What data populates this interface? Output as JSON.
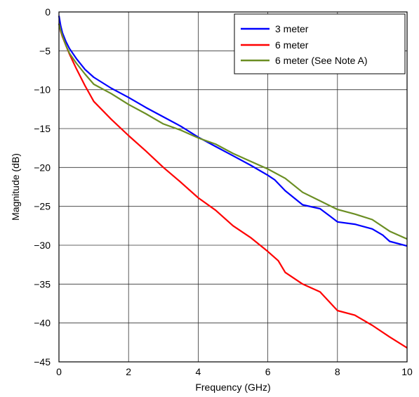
{
  "chart_data": {
    "type": "line",
    "title": "",
    "xlabel": "Frequency (GHz)",
    "ylabel": "Magnitude (dB)",
    "xlim": [
      0,
      10
    ],
    "ylim": [
      -45,
      0
    ],
    "xticks": [
      0,
      2,
      4,
      6,
      8,
      10
    ],
    "yticks": [
      0,
      -5,
      -10,
      -15,
      -20,
      -25,
      -30,
      -35,
      -40,
      -45
    ],
    "xtick_labels": [
      "0",
      "2",
      "4",
      "6",
      "8",
      "10"
    ],
    "ytick_labels": [
      "0",
      "−5",
      "−10",
      "−15",
      "−20",
      "−25",
      "−30",
      "−35",
      "−40",
      "−45"
    ],
    "grid": true,
    "legend_position": "top-right",
    "series": [
      {
        "name": "3 meter",
        "color": "#0000ff",
        "x": [
          0,
          0.05,
          0.1,
          0.2,
          0.3,
          0.5,
          0.75,
          1,
          1.5,
          2,
          2.5,
          3,
          3.5,
          4,
          4.5,
          5,
          5.5,
          6,
          6.2,
          6.5,
          7,
          7.5,
          7.8,
          8,
          8.5,
          9,
          9.3,
          9.5,
          10
        ],
        "y": [
          -0.5,
          -1.8,
          -2.7,
          -3.8,
          -4.7,
          -6.0,
          -7.4,
          -8.4,
          -9.8,
          -11.0,
          -12.3,
          -13.5,
          -14.7,
          -16.1,
          -17.3,
          -18.5,
          -19.7,
          -21.0,
          -21.6,
          -23.0,
          -24.8,
          -25.3,
          -26.3,
          -27.0,
          -27.3,
          -27.9,
          -28.7,
          -29.5,
          -30.1
        ]
      },
      {
        "name": "6 meter",
        "color": "#ff0000",
        "x": [
          0,
          0.05,
          0.1,
          0.2,
          0.3,
          0.5,
          0.75,
          1,
          1.5,
          2,
          2.5,
          3,
          3.5,
          4,
          4.5,
          5,
          5.5,
          6,
          6.3,
          6.5,
          7,
          7.5,
          8,
          8.5,
          9,
          9.5,
          10
        ],
        "y": [
          -1.5,
          -2.5,
          -3.2,
          -4.3,
          -5.4,
          -7.3,
          -9.5,
          -11.5,
          -13.8,
          -15.9,
          -17.9,
          -20.0,
          -21.9,
          -23.9,
          -25.5,
          -27.5,
          -29.0,
          -30.8,
          -32.0,
          -33.5,
          -35.0,
          -36.0,
          -38.4,
          -39.0,
          -40.3,
          -41.8,
          -43.2
        ]
      },
      {
        "name": "6 meter (See Note A)",
        "color": "#6b8e23",
        "x": [
          0,
          0.05,
          0.1,
          0.2,
          0.3,
          0.5,
          0.75,
          1,
          1.5,
          2,
          2.5,
          3,
          3.5,
          4,
          4.5,
          5,
          5.5,
          6,
          6.5,
          7,
          7.5,
          8,
          8.5,
          9,
          9.5,
          10
        ],
        "y": [
          -1.5,
          -2.4,
          -3.1,
          -4.3,
          -5.3,
          -6.6,
          -8.0,
          -9.3,
          -10.5,
          -11.9,
          -13.1,
          -14.4,
          -15.2,
          -16.2,
          -17.0,
          -18.2,
          -19.2,
          -20.2,
          -21.4,
          -23.2,
          -24.3,
          -25.4,
          -26.0,
          -26.7,
          -28.2,
          -29.2
        ]
      }
    ]
  }
}
